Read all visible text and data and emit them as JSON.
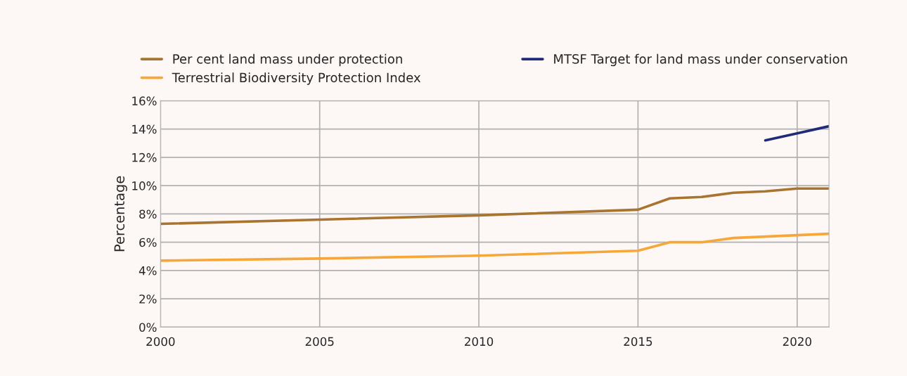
{
  "chart_data": {
    "type": "line",
    "ylabel": "Percentage",
    "x": [
      2000,
      2005,
      2010,
      2015,
      2016,
      2017,
      2018,
      2019,
      2020,
      2021
    ],
    "series": [
      {
        "name": "Per cent land mass under protection",
        "color": "#a8742f",
        "values": [
          7.3,
          7.6,
          7.9,
          8.3,
          9.1,
          9.2,
          9.5,
          9.6,
          9.8,
          9.8
        ]
      },
      {
        "name": "Terrestrial Biodiversity Protection Index",
        "color": "#f7a738",
        "values": [
          4.7,
          4.85,
          5.05,
          5.4,
          6.0,
          6.0,
          6.3,
          6.4,
          6.5,
          6.6
        ]
      },
      {
        "name": "MTSF Target for land mass under conservation",
        "color": "#1f2a7a",
        "x": [
          2019,
          2020,
          2021
        ],
        "values": [
          13.2,
          13.7,
          14.2
        ]
      }
    ],
    "xlim": [
      2000,
      2021
    ],
    "xticks": [
      2000,
      2005,
      2010,
      2015,
      2020
    ],
    "ylim": [
      0,
      16
    ],
    "yticks": [
      {
        "value": 0,
        "label": "0%"
      },
      {
        "value": 2,
        "label": "2%"
      },
      {
        "value": 4,
        "label": "4%"
      },
      {
        "value": 6,
        "label": "6%"
      },
      {
        "value": 8,
        "label": "8%"
      },
      {
        "value": 10,
        "label": "10%"
      },
      {
        "value": 12,
        "label": "12%"
      },
      {
        "value": 14,
        "label": "14%"
      },
      {
        "value": 16,
        "label": "16%"
      }
    ],
    "grid": true,
    "legend": "top",
    "marker": "none",
    "line_style": "solid"
  }
}
